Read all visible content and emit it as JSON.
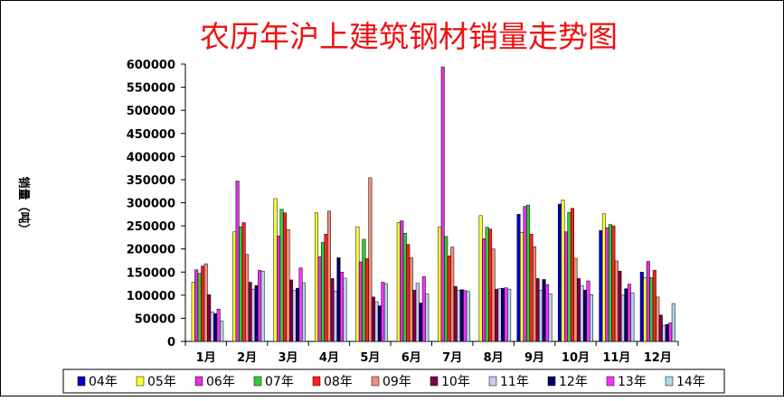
{
  "chart_data": {
    "type": "bar",
    "title": "农历年沪上建筑钢材销量走势图",
    "ylabel": "销量（吨）",
    "xlabel": "",
    "ylim": [
      0,
      600000
    ],
    "yticks": [
      "0",
      "50000",
      "100000",
      "150000",
      "200000",
      "250000",
      "300000",
      "350000",
      "400000",
      "450000",
      "500000",
      "550000",
      "600000"
    ],
    "categories": [
      "1月",
      "2月",
      "3月",
      "4月",
      "5月",
      "6月",
      "7月",
      "8月",
      "9月",
      "10月",
      "11月",
      "12月"
    ],
    "legend_position": "bottom",
    "grid": false,
    "series": [
      {
        "name": "04年",
        "color": "#0000cc",
        "values": [
          null,
          null,
          null,
          null,
          null,
          null,
          null,
          null,
          275000,
          297000,
          240000,
          150000
        ]
      },
      {
        "name": "05年",
        "color": "#ffff33",
        "values": [
          128000,
          237000,
          309000,
          278000,
          248000,
          257000,
          248000,
          272000,
          236000,
          306000,
          276000,
          138000
        ]
      },
      {
        "name": "06年",
        "color": "#e030e0",
        "values": [
          155000,
          347000,
          228000,
          183000,
          172000,
          261000,
          594000,
          222000,
          292000,
          237000,
          246000,
          173000
        ]
      },
      {
        "name": "07年",
        "color": "#33cc33",
        "values": [
          147000,
          248000,
          286000,
          214000,
          221000,
          234000,
          227000,
          247000,
          295000,
          279000,
          253000,
          138000
        ]
      },
      {
        "name": "08年",
        "color": "#ff2020",
        "values": [
          163000,
          257000,
          278000,
          232000,
          179000,
          210000,
          185000,
          243000,
          232000,
          288000,
          250000,
          154000
        ]
      },
      {
        "name": "09年",
        "color": "#f0907a",
        "values": [
          168000,
          188000,
          242000,
          282000,
          354000,
          181000,
          204000,
          200000,
          205000,
          180000,
          174000,
          96000
        ]
      },
      {
        "name": "10年",
        "color": "#800040",
        "values": [
          101000,
          128000,
          133000,
          136000,
          96000,
          111000,
          119000,
          113000,
          136000,
          136000,
          152000,
          57000
        ]
      },
      {
        "name": "11年",
        "color": "#c8c8f0",
        "values": [
          64000,
          113000,
          110000,
          109000,
          86000,
          126000,
          110000,
          114000,
          111000,
          121000,
          100000,
          35000
        ]
      },
      {
        "name": "12年",
        "color": "#000066",
        "values": [
          60000,
          121000,
          115000,
          181000,
          77000,
          83000,
          112000,
          115000,
          134000,
          111000,
          114000,
          37000
        ]
      },
      {
        "name": "13年",
        "color": "#ff30ff",
        "values": [
          70000,
          154000,
          159000,
          150000,
          128000,
          140000,
          110000,
          116000,
          123000,
          131000,
          124000,
          40000
        ]
      },
      {
        "name": "14年",
        "color": "#add8e6",
        "values": [
          44000,
          152000,
          127000,
          137000,
          125000,
          103000,
          108000,
          113000,
          103000,
          101000,
          105000,
          82000
        ]
      }
    ]
  }
}
